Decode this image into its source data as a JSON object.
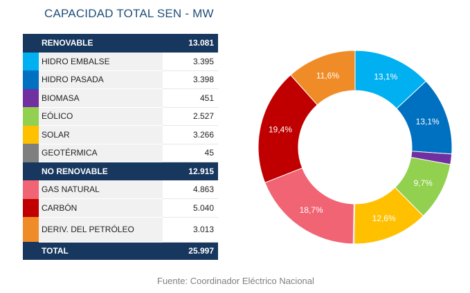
{
  "title": "CAPACIDAD TOTAL SEN - MW",
  "source": "Fuente: Coordinador Eléctrico Nacional",
  "table": {
    "renovable": {
      "label": "RENOVABLE",
      "value": "13.081"
    },
    "renovable_rows": [
      {
        "label": "HIDRO EMBALSE",
        "value": "3.395",
        "color": "#00b0f0"
      },
      {
        "label": "HIDRO PASADA",
        "value": "3.398",
        "color": "#0070c0"
      },
      {
        "label": "BIOMASA",
        "value": "451",
        "color": "#7030a0"
      },
      {
        "label": "EÓLICO",
        "value": "2.527",
        "color": "#92d050"
      },
      {
        "label": "SOLAR",
        "value": "3.266",
        "color": "#ffc000"
      },
      {
        "label": "GEOTÉRMICA",
        "value": "45",
        "color": "#7f7f7f"
      }
    ],
    "no_renovable": {
      "label": "NO RENOVABLE",
      "value": "12.915"
    },
    "no_renovable_rows": [
      {
        "label": "GAS NATURAL",
        "value": "4.863",
        "color": "#f06474"
      },
      {
        "label": "CARBÓN",
        "value": "5.040",
        "color": "#c00000"
      },
      {
        "label": "DERIV. DEL PETRÓLEO",
        "value": "3.013",
        "color": "#f08c28"
      }
    ],
    "total": {
      "label": "TOTAL",
      "value": "25.997"
    }
  },
  "chart_data": {
    "type": "pie",
    "categories": [
      "HIDRO EMBALSE",
      "HIDRO PASADA",
      "BIOMASA",
      "EÓLICO",
      "SOLAR",
      "GEOTÉRMICA",
      "GAS NATURAL",
      "CARBÓN",
      "DERIV. DEL PETRÓLEO"
    ],
    "values": [
      3395,
      3398,
      451,
      2527,
      3266,
      45,
      4863,
      5040,
      3013
    ],
    "colors": [
      "#00b0f0",
      "#0070c0",
      "#7030a0",
      "#92d050",
      "#ffc000",
      "#7f7f7f",
      "#f06474",
      "#c00000",
      "#f08c28"
    ],
    "labels": [
      "13,1%",
      "13,1%",
      "",
      "9,7%",
      "12,6%",
      "",
      "18,7%",
      "19,4%",
      "11,6%"
    ],
    "donut": true
  }
}
